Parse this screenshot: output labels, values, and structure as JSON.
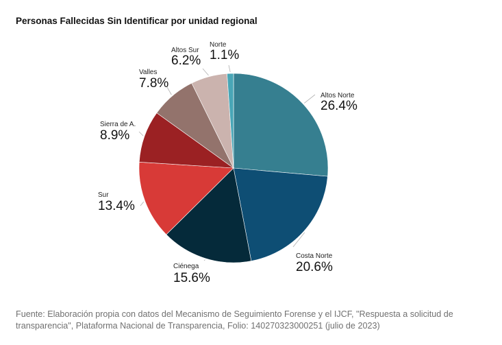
{
  "title": "Personas Fallecidas Sin Identificar por unidad regional",
  "source": "Fuente: Elaboración propia con datos del Mecanismo de Seguimiento Forense y el IJCF, \"Respuesta a solicitud de transparencia\", Plataforma Nacional de Transparencia, Folio: 140270323000251 (julio de 2023)",
  "chart_data": {
    "type": "pie",
    "title": "Personas Fallecidas Sin Identificar por unidad regional",
    "slices": [
      {
        "label": "Altos Norte",
        "value": 26.4,
        "value_label": "26.4%",
        "color": "#367f90"
      },
      {
        "label": "Costa Norte",
        "value": 20.6,
        "value_label": "20.6%",
        "color": "#0e4e74"
      },
      {
        "label": "Ciénega",
        "value": 15.6,
        "value_label": "15.6%",
        "color": "#052a3a"
      },
      {
        "label": "Sur",
        "value": 13.4,
        "value_label": "13.4%",
        "color": "#d83a37"
      },
      {
        "label": "Sierra de A.",
        "value": 8.9,
        "value_label": "8.9%",
        "color": "#9b2123"
      },
      {
        "label": "Valles",
        "value": 7.8,
        "value_label": "7.8%",
        "color": "#93736c"
      },
      {
        "label": "Altos Sur",
        "value": 6.2,
        "value_label": "6.2%",
        "color": "#cbb3ae"
      },
      {
        "label": "Norte",
        "value": 1.1,
        "value_label": "1.1%",
        "color": "#49a6b6"
      }
    ]
  }
}
